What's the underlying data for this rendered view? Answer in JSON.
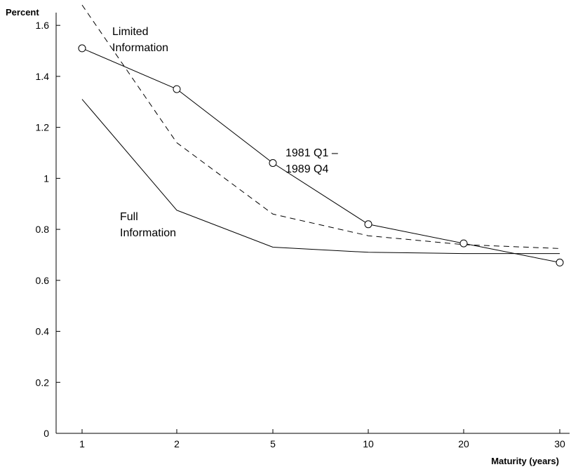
{
  "chart_data": {
    "type": "line",
    "ylabel": "Percent",
    "xlabel": "Maturity (years)",
    "categories": [
      "1",
      "2",
      "5",
      "10",
      "20",
      "30"
    ],
    "ylim": [
      0,
      1.65
    ],
    "yticks": [
      "0",
      "0.2",
      "0.4",
      "0.6",
      "0.8",
      "1",
      "1.2",
      "1.4",
      "1.6"
    ],
    "grid": false,
    "series": [
      {
        "name": "Full Information",
        "style": "solid",
        "markers": false,
        "values": [
          1.31,
          0.875,
          0.73,
          0.71,
          0.705,
          0.705
        ]
      },
      {
        "name": "Limited Information",
        "style": "dashed",
        "markers": false,
        "values": [
          1.68,
          1.14,
          0.86,
          0.775,
          0.74,
          0.725
        ]
      },
      {
        "name": "1981 Q1 – 1989 Q4",
        "style": "solid",
        "markers": true,
        "values": [
          1.51,
          1.35,
          1.06,
          0.82,
          0.745,
          0.67
        ]
      }
    ],
    "annotations": [
      {
        "lines": [
          "Limited",
          "Information"
        ],
        "series": "Limited Information"
      },
      {
        "lines": [
          "1981 Q1 –",
          "1989 Q4"
        ],
        "series": "1981 Q1 – 1989 Q4"
      },
      {
        "lines": [
          "Full",
          "Information"
        ],
        "series": "Full Information"
      }
    ]
  }
}
